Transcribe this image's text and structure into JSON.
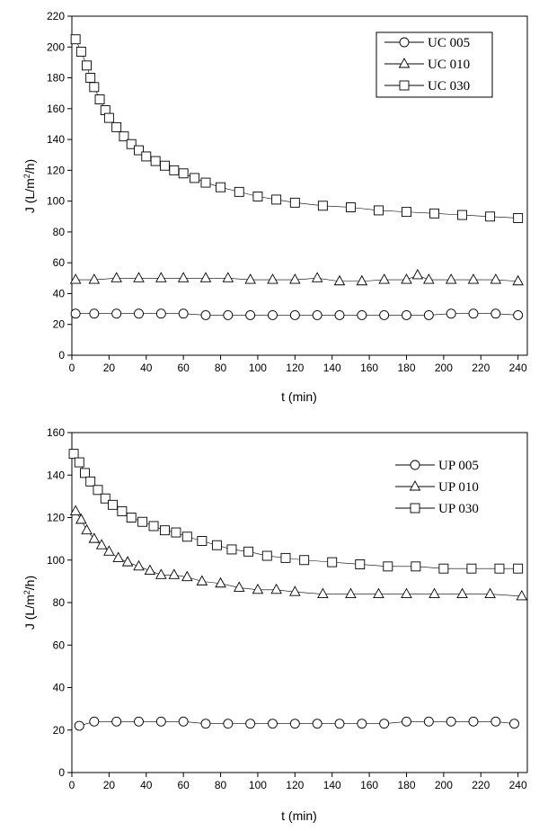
{
  "chart_data": [
    {
      "type": "scatter",
      "title": "",
      "xlabel": "t (min)",
      "ylabel_main": "J (L/m",
      "ylabel_sup": "2",
      "ylabel_tail": "/h)",
      "xlim": [
        0,
        245
      ],
      "ylim": [
        0,
        220
      ],
      "xticks": [
        0,
        20,
        40,
        60,
        80,
        100,
        120,
        140,
        160,
        180,
        200,
        220,
        240
      ],
      "yticks": [
        0,
        20,
        40,
        60,
        80,
        100,
        120,
        140,
        160,
        180,
        200,
        220
      ],
      "legend_position": "top-right",
      "grid": false,
      "series": [
        {
          "name": "UC 005",
          "marker": "circle",
          "x": [
            2,
            12,
            24,
            36,
            48,
            60,
            72,
            84,
            96,
            108,
            120,
            132,
            144,
            156,
            168,
            180,
            192,
            204,
            216,
            228,
            240
          ],
          "y": [
            27,
            27,
            27,
            27,
            27,
            27,
            26,
            26,
            26,
            26,
            26,
            26,
            26,
            26,
            26,
            26,
            26,
            27,
            27,
            27,
            26
          ]
        },
        {
          "name": "UC 010",
          "marker": "triangle",
          "x": [
            2,
            12,
            24,
            36,
            48,
            60,
            72,
            84,
            96,
            108,
            120,
            132,
            144,
            156,
            168,
            180,
            186,
            192,
            204,
            216,
            228,
            240
          ],
          "y": [
            49,
            49,
            50,
            50,
            50,
            50,
            50,
            50,
            49,
            49,
            49,
            50,
            48,
            48,
            49,
            49,
            52,
            49,
            49,
            49,
            49,
            48
          ]
        },
        {
          "name": "UC 030",
          "marker": "square",
          "x": [
            2,
            5,
            8,
            10,
            12,
            15,
            18,
            20,
            24,
            28,
            32,
            36,
            40,
            45,
            50,
            55,
            60,
            66,
            72,
            80,
            90,
            100,
            110,
            120,
            135,
            150,
            165,
            180,
            195,
            210,
            225,
            240
          ],
          "y": [
            205,
            197,
            188,
            180,
            174,
            166,
            159,
            154,
            148,
            142,
            137,
            133,
            129,
            126,
            123,
            120,
            118,
            115,
            112,
            109,
            106,
            103,
            101,
            99,
            97,
            96,
            94,
            93,
            92,
            91,
            90,
            89
          ]
        }
      ]
    },
    {
      "type": "scatter",
      "title": "",
      "xlabel": "t (min)",
      "ylabel_main": "J (L/m",
      "ylabel_sup": "2",
      "ylabel_tail": "/h)",
      "xlim": [
        0,
        245
      ],
      "ylim": [
        0,
        160
      ],
      "xticks": [
        0,
        20,
        40,
        60,
        80,
        100,
        120,
        140,
        160,
        180,
        200,
        220,
        240
      ],
      "yticks": [
        0,
        20,
        40,
        60,
        80,
        100,
        120,
        140,
        160
      ],
      "legend_position": "top-right",
      "grid": false,
      "series": [
        {
          "name": "UP 005",
          "marker": "circle",
          "x": [
            4,
            12,
            24,
            36,
            48,
            60,
            72,
            84,
            96,
            108,
            120,
            132,
            144,
            156,
            168,
            180,
            192,
            204,
            216,
            228,
            238
          ],
          "y": [
            22,
            24,
            24,
            24,
            24,
            24,
            23,
            23,
            23,
            23,
            23,
            23,
            23,
            23,
            23,
            24,
            24,
            24,
            24,
            24,
            23
          ]
        },
        {
          "name": "UP 010",
          "marker": "triangle",
          "x": [
            2,
            5,
            8,
            12,
            16,
            20,
            25,
            30,
            36,
            42,
            48,
            55,
            62,
            70,
            80,
            90,
            100,
            110,
            120,
            135,
            150,
            165,
            180,
            195,
            210,
            225,
            242
          ],
          "y": [
            123,
            119,
            114,
            110,
            107,
            104,
            101,
            99,
            97,
            95,
            93,
            93,
            92,
            90,
            89,
            87,
            86,
            86,
            85,
            84,
            84,
            84,
            84,
            84,
            84,
            84,
            83
          ]
        },
        {
          "name": "UP 030",
          "marker": "square",
          "x": [
            1,
            4,
            7,
            10,
            14,
            18,
            22,
            27,
            32,
            38,
            44,
            50,
            56,
            62,
            70,
            78,
            86,
            95,
            105,
            115,
            125,
            140,
            155,
            170,
            185,
            200,
            215,
            230,
            240
          ],
          "y": [
            150,
            146,
            141,
            137,
            133,
            129,
            126,
            123,
            120,
            118,
            116,
            114,
            113,
            111,
            109,
            107,
            105,
            104,
            102,
            101,
            100,
            99,
            98,
            97,
            97,
            96,
            96,
            96,
            96
          ]
        }
      ]
    }
  ]
}
